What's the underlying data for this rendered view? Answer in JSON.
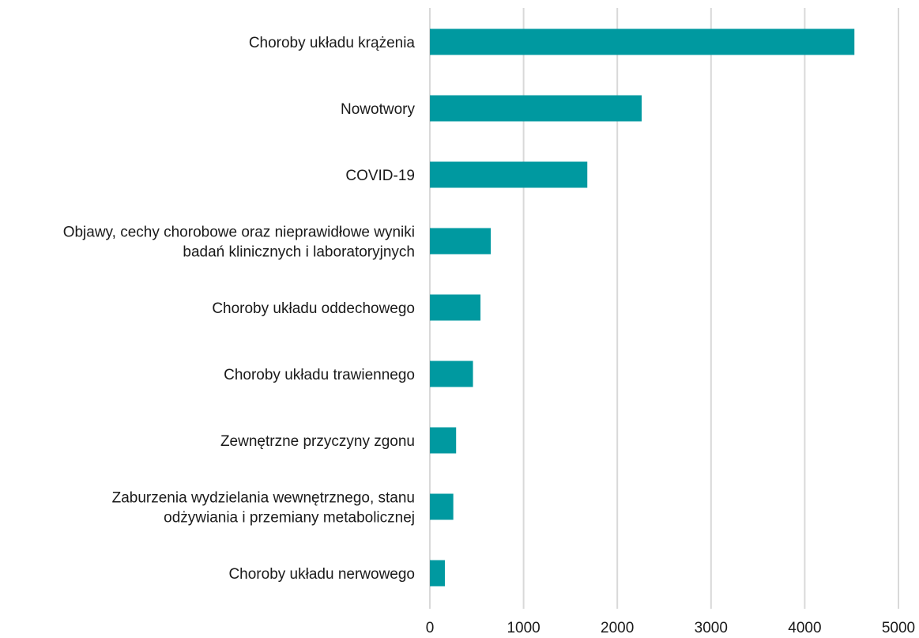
{
  "chart_data": {
    "type": "bar",
    "orientation": "horizontal",
    "categories": [
      [
        "Choroby układu krążenia"
      ],
      [
        "Nowotwory"
      ],
      [
        "COVID-19"
      ],
      [
        "Objawy, cechy chorobowe oraz nieprawidłowe wyniki",
        "badań klinicznych i laboratoryjnych"
      ],
      [
        "Choroby układu oddechowego"
      ],
      [
        "Choroby układu trawiennego"
      ],
      [
        "Zewnętrzne przyczyny zgonu"
      ],
      [
        "Zaburzenia wydzielania wewnętrznego, stanu",
        "odżywiania i przemiany metabolicznej"
      ],
      [
        "Choroby układu nerwowego"
      ]
    ],
    "values": [
      4530,
      2260,
      1680,
      650,
      540,
      460,
      280,
      250,
      160
    ],
    "xlim": [
      0,
      5000
    ],
    "xticks": [
      0,
      1000,
      2000,
      3000,
      4000,
      5000
    ],
    "grid": true,
    "bar_color": "#0099a0",
    "title": "",
    "xlabel": "",
    "ylabel": ""
  }
}
